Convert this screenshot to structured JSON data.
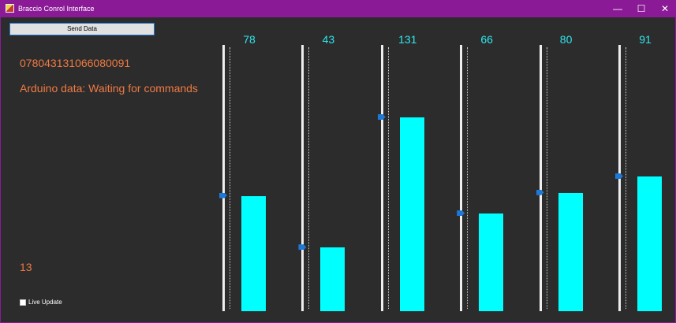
{
  "window": {
    "title": "Braccio Conrol Interface",
    "controls": {
      "minimize": "—",
      "maximize": "☐",
      "close": "✕"
    }
  },
  "toolbar": {
    "send_label": "Send Data"
  },
  "status": {
    "data_string": "078043131066080091",
    "arduino_message": "Arduino data: Waiting for commands",
    "count": "13"
  },
  "live_update": {
    "label": "Live Update",
    "checked": false
  },
  "colors": {
    "accent": "#8b1a96",
    "bar": "#00ffff",
    "value_text": "#2ee8ee",
    "status_text": "#f07a43",
    "thumb": "#1e78d6"
  },
  "sliders": [
    {
      "value": "78"
    },
    {
      "value": "43"
    },
    {
      "value": "131"
    },
    {
      "value": "66"
    },
    {
      "value": "80"
    },
    {
      "value": "91"
    }
  ]
}
